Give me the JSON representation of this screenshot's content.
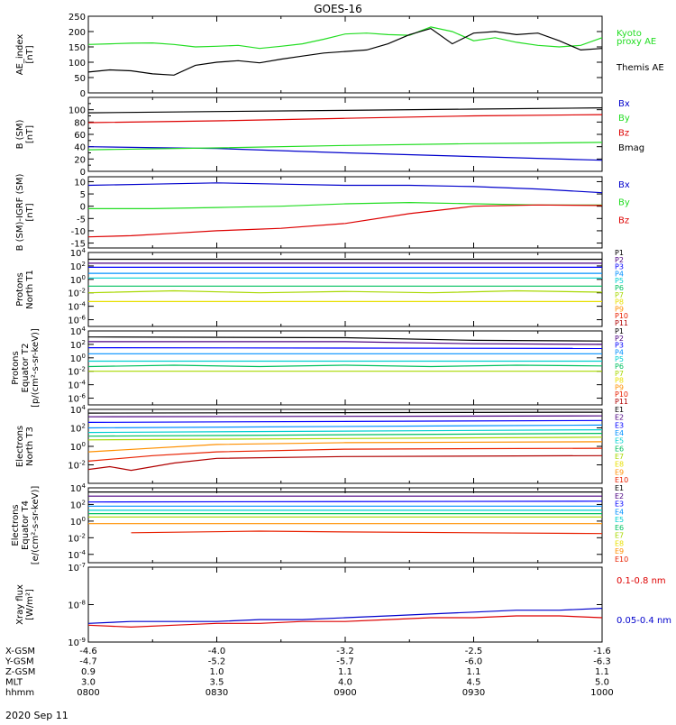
{
  "title": "GOES-16",
  "date_label": "2020 Sep 11",
  "colors": {
    "black": "#000000",
    "green": "#22dd22",
    "red": "#dd0000",
    "blue": "#0000cc",
    "P1": "#000000",
    "P2": "#4b0082",
    "P3": "#0000ff",
    "P4": "#0090ff",
    "P5": "#00d0d0",
    "P6": "#00c060",
    "P7": "#a8d800",
    "P8": "#e8e000",
    "P9": "#ff9000",
    "P10": "#e82000",
    "P11": "#b00000"
  },
  "xaxis": {
    "time_range": [
      800,
      1000
    ],
    "rows": [
      {
        "label": "X-GSM",
        "values": [
          "-4.6",
          "-4.0",
          "-3.2",
          "-2.5",
          "-1.6"
        ]
      },
      {
        "label": "Y-GSM",
        "values": [
          "-4.7",
          "-5.2",
          "-5.7",
          "-6.0",
          "-6.3"
        ]
      },
      {
        "label": "Z-GSM",
        "values": [
          "0.9",
          "1.0",
          "1.1",
          "1.1",
          "1.1"
        ]
      },
      {
        "label": "MLT",
        "values": [
          "3.0",
          "3.5",
          "4.0",
          "4.5",
          "5.0"
        ]
      },
      {
        "label": "hhmm",
        "values": [
          "0800",
          "0830",
          "0900",
          "0930",
          "1000"
        ]
      }
    ]
  },
  "chart_data": [
    {
      "type": "line",
      "ylabel": [
        "AE_index",
        "[nT]"
      ],
      "ylim": [
        0,
        250
      ],
      "scale": "linear",
      "ticks": [
        "0",
        "50",
        "100",
        "150",
        "200",
        "250"
      ],
      "tick_values": [
        0,
        50,
        100,
        150,
        200,
        250
      ],
      "legend_placement": "right",
      "series": [
        {
          "name": "Kyoto proxy AE",
          "color_key": "green",
          "x": [
            800,
            805,
            810,
            815,
            820,
            825,
            830,
            835,
            840,
            845,
            850,
            855,
            900,
            905,
            910,
            915,
            920,
            925,
            930,
            935,
            940,
            945,
            950,
            955,
            1000
          ],
          "y": [
            158,
            160,
            162,
            163,
            158,
            150,
            152,
            155,
            145,
            152,
            160,
            175,
            192,
            195,
            190,
            188,
            215,
            200,
            170,
            180,
            165,
            155,
            150,
            155,
            180
          ]
        },
        {
          "name": "Themis AE",
          "color_key": "black",
          "x": [
            800,
            805,
            810,
            815,
            820,
            825,
            830,
            835,
            840,
            845,
            850,
            855,
            900,
            905,
            910,
            915,
            920,
            925,
            930,
            935,
            940,
            945,
            950,
            955,
            1000
          ],
          "y": [
            68,
            75,
            72,
            62,
            58,
            90,
            100,
            105,
            98,
            110,
            120,
            130,
            135,
            140,
            160,
            190,
            210,
            160,
            195,
            200,
            190,
            195,
            170,
            140,
            145
          ]
        }
      ],
      "labels": [
        {
          "text": "Kyoto",
          "color_key": "green"
        },
        {
          "text": "proxy AE",
          "color_key": "green"
        },
        {
          "text": "Themis AE",
          "color_key": "black"
        }
      ]
    },
    {
      "type": "line",
      "ylabel": [
        "B (SM)",
        "[nT]"
      ],
      "ylim": [
        0,
        120
      ],
      "scale": "linear",
      "ticks": [
        "0",
        "20",
        "40",
        "60",
        "80",
        "100"
      ],
      "tick_values": [
        0,
        20,
        40,
        60,
        80,
        100
      ],
      "minor_ticks": [
        10,
        30,
        50,
        70,
        90,
        110
      ],
      "legend_placement": "right",
      "series": [
        {
          "name": "Bx",
          "color_key": "blue",
          "x": [
            800,
            830,
            900,
            930,
            1000
          ],
          "y": [
            40,
            37,
            30,
            24,
            18
          ]
        },
        {
          "name": "By",
          "color_key": "green",
          "x": [
            800,
            830,
            900,
            930,
            1000
          ],
          "y": [
            35,
            38,
            42,
            45,
            47
          ]
        },
        {
          "name": "Bz",
          "color_key": "red",
          "x": [
            800,
            830,
            900,
            930,
            1000
          ],
          "y": [
            79,
            82,
            86,
            90,
            92
          ]
        },
        {
          "name": "Bmag",
          "color_key": "black",
          "x": [
            800,
            830,
            900,
            930,
            1000
          ],
          "y": [
            95,
            97,
            99,
            101,
            103
          ]
        }
      ]
    },
    {
      "type": "line",
      "ylabel": [
        "B (SM)-IGRF (SM)",
        "[nT]"
      ],
      "ylim": [
        -17,
        12
      ],
      "scale": "linear",
      "ticks": [
        "-15",
        "-10",
        "-5",
        "0",
        "5",
        "10"
      ],
      "tick_values": [
        -15,
        -10,
        -5,
        0,
        5,
        10
      ],
      "legend_placement": "right",
      "series": [
        {
          "name": "Bx",
          "color_key": "blue",
          "x": [
            800,
            815,
            830,
            845,
            900,
            915,
            930,
            945,
            1000
          ],
          "y": [
            8.5,
            9,
            9.5,
            9,
            8.5,
            8.5,
            8,
            7,
            5.5
          ]
        },
        {
          "name": "By",
          "color_key": "green",
          "x": [
            800,
            815,
            830,
            845,
            900,
            915,
            930,
            945,
            1000
          ],
          "y": [
            -1,
            -1,
            -0.5,
            0,
            1,
            1.5,
            1,
            0.5,
            0.5
          ]
        },
        {
          "name": "Bz",
          "color_key": "red",
          "x": [
            800,
            810,
            820,
            830,
            845,
            900,
            915,
            930,
            945,
            1000
          ],
          "y": [
            -12.5,
            -12,
            -11,
            -10,
            -9,
            -7,
            -3,
            0,
            0.5,
            0.3
          ]
        }
      ]
    },
    {
      "type": "line",
      "ylabel": [
        "Protons",
        "North T1"
      ],
      "ylim": [
        -7,
        4
      ],
      "scale": "log",
      "ticks": [
        "10^4",
        "10^2",
        "10^0",
        "10^-2",
        "10^-4",
        "10^-6"
      ],
      "tick_values": [
        4,
        2,
        0,
        -2,
        -4,
        -6
      ],
      "legend_placement": "right",
      "series": [
        {
          "name": "P1",
          "color_key": "P1",
          "x": [
            800,
            1000
          ],
          "y": [
            3.0,
            3.0
          ]
        },
        {
          "name": "P2",
          "color_key": "P2",
          "x": [
            800,
            1000
          ],
          "y": [
            2.4,
            2.4
          ]
        },
        {
          "name": "P3",
          "color_key": "P3",
          "x": [
            800,
            1000
          ],
          "y": [
            1.8,
            1.8
          ]
        },
        {
          "name": "P4",
          "color_key": "P4",
          "x": [
            800,
            1000
          ],
          "y": [
            0.9,
            0.9
          ]
        },
        {
          "name": "P5",
          "color_key": "P5",
          "x": [
            800,
            1000
          ],
          "y": [
            0.2,
            0.2
          ]
        },
        {
          "name": "P6",
          "color_key": "P6",
          "x": [
            800,
            1000
          ],
          "y": [
            -1.0,
            -1.0
          ]
        },
        {
          "name": "P7",
          "color_key": "P7",
          "x": [
            800,
            820,
            840,
            900,
            920,
            940,
            1000
          ],
          "y": [
            -2.0,
            -1.7,
            -2.0,
            -1.8,
            -2.0,
            -1.7,
            -1.9
          ]
        },
        {
          "name": "P8",
          "color_key": "P8",
          "x": [
            800,
            1000
          ],
          "y": [
            -3.3,
            -3.3
          ]
        }
      ],
      "labels": [
        "P1",
        "P2",
        "P3",
        "P4",
        "P5",
        "P6",
        "P7",
        "P8",
        "P9",
        "P10",
        "P11"
      ]
    },
    {
      "type": "line",
      "ylabel": [
        "Protons",
        "Equator T2",
        "[p/(cm²-s-sr-keV)]"
      ],
      "ylim": [
        -7,
        4
      ],
      "scale": "log",
      "ticks": [
        "10^4",
        "10^2",
        "10^0",
        "10^-2",
        "10^-4",
        "10^-6"
      ],
      "tick_values": [
        4,
        2,
        0,
        -2,
        -4,
        -6
      ],
      "legend_placement": "right",
      "series": [
        {
          "name": "P1",
          "color_key": "P1",
          "x": [
            800,
            900,
            930,
            1000
          ],
          "y": [
            3.1,
            3.0,
            2.6,
            2.5
          ]
        },
        {
          "name": "P2",
          "color_key": "P2",
          "x": [
            800,
            900,
            930,
            1000
          ],
          "y": [
            2.4,
            2.4,
            2.1,
            2.0
          ]
        },
        {
          "name": "P3",
          "color_key": "P3",
          "x": [
            800,
            1000
          ],
          "y": [
            1.5,
            1.4
          ]
        },
        {
          "name": "P4",
          "color_key": "P4",
          "x": [
            800,
            1000
          ],
          "y": [
            0.6,
            0.6
          ]
        },
        {
          "name": "P5",
          "color_key": "P5",
          "x": [
            800,
            1000
          ],
          "y": [
            -0.5,
            -0.5
          ]
        },
        {
          "name": "P6",
          "color_key": "P6",
          "x": [
            800,
            820,
            840,
            900,
            920,
            940,
            1000
          ],
          "y": [
            -1.3,
            -1.1,
            -1.3,
            -1.1,
            -1.3,
            -1.1,
            -1.2
          ]
        },
        {
          "name": "P7",
          "color_key": "P7",
          "x": [
            800,
            1000
          ],
          "y": [
            -2.0,
            -2.0
          ]
        }
      ],
      "labels": [
        "P1",
        "P2",
        "P3",
        "P4",
        "P5",
        "P6",
        "P7",
        "P8",
        "P9",
        "P10",
        "P11"
      ]
    },
    {
      "type": "line",
      "ylabel": [
        "Electrons",
        "North T3"
      ],
      "ylim": [
        -4,
        4
      ],
      "scale": "log",
      "ticks": [
        "10^4",
        "10^2",
        "10^0",
        "10^-2"
      ],
      "tick_values": [
        4,
        2,
        0,
        -2
      ],
      "legend_placement": "right",
      "series": [
        {
          "name": "E1",
          "color_key": "P1",
          "x": [
            800,
            1000
          ],
          "y": [
            3.6,
            3.7
          ]
        },
        {
          "name": "E2",
          "color_key": "P2",
          "x": [
            800,
            1000
          ],
          "y": [
            3.2,
            3.3
          ]
        },
        {
          "name": "E3",
          "color_key": "P3",
          "x": [
            800,
            1000
          ],
          "y": [
            2.6,
            2.8
          ]
        },
        {
          "name": "E4",
          "color_key": "P4",
          "x": [
            800,
            1000
          ],
          "y": [
            2.0,
            2.3
          ]
        },
        {
          "name": "E5",
          "color_key": "P5",
          "x": [
            800,
            1000
          ],
          "y": [
            1.5,
            1.8
          ]
        },
        {
          "name": "E6",
          "color_key": "P6",
          "x": [
            800,
            1000
          ],
          "y": [
            1.1,
            1.4
          ]
        },
        {
          "name": "E7",
          "color_key": "P7",
          "x": [
            800,
            1000
          ],
          "y": [
            0.7,
            1.0
          ]
        },
        {
          "name": "E8",
          "color_key": "P9",
          "x": [
            800,
            830,
            900,
            1000
          ],
          "y": [
            -0.6,
            0.2,
            0.4,
            0.5
          ]
        },
        {
          "name": "E9",
          "color_key": "P10",
          "x": [
            800,
            815,
            830,
            900,
            1000
          ],
          "y": [
            -1.6,
            -1.0,
            -0.6,
            -0.3,
            -0.2
          ]
        },
        {
          "name": "E10",
          "color_key": "P11",
          "x": [
            800,
            805,
            810,
            820,
            830,
            900,
            1000
          ],
          "y": [
            -2.5,
            -2.2,
            -2.6,
            -1.8,
            -1.3,
            -1.1,
            -1.0
          ]
        }
      ],
      "labels": [
        "E1",
        "E2",
        "E3",
        "E4",
        "E5",
        "E6",
        "E7",
        "E8",
        "E9",
        "E10"
      ]
    },
    {
      "type": "line",
      "ylabel": [
        "Electrons",
        "Equator T4",
        "[e/(cm²-s-sr-keV)]"
      ],
      "ylim": [
        -5,
        4
      ],
      "scale": "log",
      "ticks": [
        "10^4",
        "10^2",
        "10^0",
        "10^-2",
        "10^-4"
      ],
      "tick_values": [
        4,
        2,
        0,
        -2,
        -4
      ],
      "legend_placement": "right",
      "series": [
        {
          "name": "E1",
          "color_key": "P1",
          "x": [
            800,
            1000
          ],
          "y": [
            3.5,
            3.5
          ]
        },
        {
          "name": "E2",
          "color_key": "P2",
          "x": [
            800,
            1000
          ],
          "y": [
            3.0,
            3.0
          ]
        },
        {
          "name": "E3",
          "color_key": "P3",
          "x": [
            800,
            1000
          ],
          "y": [
            2.3,
            2.4
          ]
        },
        {
          "name": "E4",
          "color_key": "P4",
          "x": [
            800,
            1000
          ],
          "y": [
            1.8,
            1.8
          ]
        },
        {
          "name": "E5",
          "color_key": "P5",
          "x": [
            800,
            1000
          ],
          "y": [
            1.3,
            1.3
          ]
        },
        {
          "name": "E6",
          "color_key": "P6",
          "x": [
            800,
            1000
          ],
          "y": [
            0.9,
            0.9
          ]
        },
        {
          "name": "E7",
          "color_key": "P7",
          "x": [
            800,
            1000
          ],
          "y": [
            0.5,
            0.5
          ]
        },
        {
          "name": "E8",
          "color_key": "P9",
          "x": [
            800,
            1000
          ],
          "y": [
            -0.3,
            -0.3
          ]
        },
        {
          "name": "E9",
          "color_key": "P10",
          "x": [
            810,
            840,
            900,
            930,
            1000
          ],
          "y": [
            -1.4,
            -1.2,
            -1.3,
            -1.4,
            -1.5
          ]
        }
      ],
      "labels": [
        "E1",
        "E2",
        "E3",
        "E4",
        "E5",
        "E6",
        "E7",
        "E8",
        "E9",
        "E10"
      ]
    },
    {
      "type": "line",
      "ylabel": [
        "Xray flux",
        "[W/m²]"
      ],
      "ylim": [
        -9,
        -7
      ],
      "scale": "log",
      "ticks": [
        "10^-7",
        "10^-8",
        "10^-9"
      ],
      "tick_values": [
        -7,
        -8,
        -9
      ],
      "legend_placement": "right",
      "series": [
        {
          "name": "0.1-0.8 nm",
          "color_key": "red",
          "x": [
            800,
            810,
            820,
            830,
            840,
            850,
            900,
            910,
            920,
            930,
            940,
            950,
            1000
          ],
          "y": [
            -8.55,
            -8.6,
            -8.55,
            -8.5,
            -8.5,
            -8.45,
            -8.45,
            -8.4,
            -8.35,
            -8.35,
            -8.3,
            -8.3,
            -8.35
          ]
        },
        {
          "name": "0.05-0.4 nm",
          "color_key": "blue",
          "x": [
            800,
            810,
            820,
            830,
            840,
            850,
            900,
            910,
            920,
            930,
            940,
            950,
            1000
          ],
          "y": [
            -8.5,
            -8.45,
            -8.45,
            -8.45,
            -8.4,
            -8.4,
            -8.35,
            -8.3,
            -8.25,
            -8.2,
            -8.15,
            -8.15,
            -8.1
          ]
        }
      ],
      "labels": [
        {
          "text": "0.1-0.8 nm",
          "color_key": "red"
        },
        {
          "text": "0.05-0.4 nm",
          "color_key": "blue"
        }
      ]
    }
  ]
}
